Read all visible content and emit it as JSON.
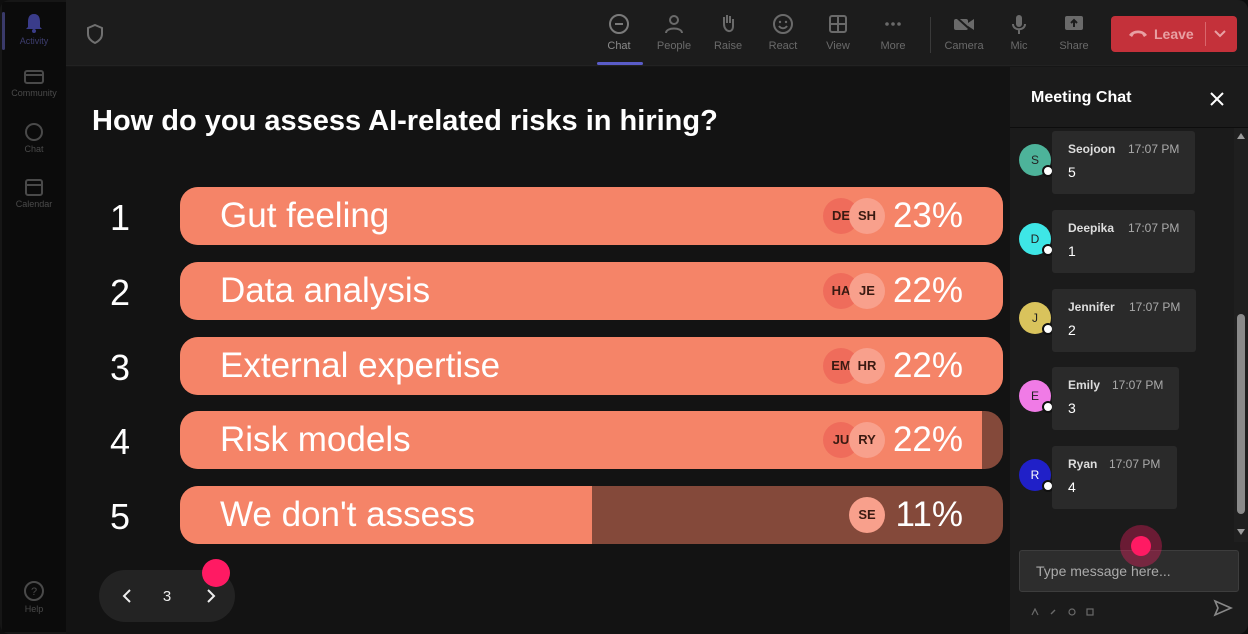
{
  "rail": {
    "items": [
      {
        "label": "Activity",
        "icon": "bell-icon"
      },
      {
        "label": "Community",
        "icon": "community-icon"
      },
      {
        "label": "Chat",
        "icon": "chat-icon"
      },
      {
        "label": "Calendar",
        "icon": "calendar-icon"
      }
    ],
    "help_label": "Help"
  },
  "toolbar": {
    "chat": "Chat",
    "people": "People",
    "raise": "Raise",
    "react": "React",
    "view": "View",
    "more": "More",
    "camera": "Camera",
    "mic": "Mic",
    "share": "Share",
    "leave": "Leave"
  },
  "poll": {
    "question": "How do you assess AI-related risks in hiring?",
    "options": [
      {
        "number": "1",
        "label": "Gut feeling",
        "percent": "23%",
        "fill": 1.0,
        "avatars": [
          "DE",
          "SH"
        ]
      },
      {
        "number": "2",
        "label": "Data analysis",
        "percent": "22%",
        "fill": 1.0,
        "avatars": [
          "HA",
          "JE"
        ]
      },
      {
        "number": "3",
        "label": "External expertise",
        "percent": "22%",
        "fill": 1.0,
        "avatars": [
          "EM",
          "HR"
        ]
      },
      {
        "number": "4",
        "label": "Risk models",
        "percent": "22%",
        "fill": 0.975,
        "avatars": [
          "JU",
          "RY"
        ]
      },
      {
        "number": "5",
        "label": "We don't assess",
        "percent": "11%",
        "fill": 0.5,
        "avatars": [
          "SE"
        ]
      }
    ]
  },
  "pager": {
    "page": "3"
  },
  "chat": {
    "title": "Meeting Chat",
    "messages": [
      {
        "initial": "S",
        "name": "Seojoon",
        "time": "17:07 PM",
        "text": "5",
        "color": "#4db39a"
      },
      {
        "initial": "D",
        "name": "Deepika",
        "time": "17:07 PM",
        "text": "1",
        "color": "#3ee6e6"
      },
      {
        "initial": "J",
        "name": "Jennifer",
        "time": "17:07 PM",
        "text": "2",
        "color": "#d9c35c"
      },
      {
        "initial": "E",
        "name": "Emily",
        "time": "17:07 PM",
        "text": "3",
        "color": "#f07be6"
      },
      {
        "initial": "R",
        "name": "Ryan",
        "time": "17:07 PM",
        "text": "4",
        "color": "#2020c8"
      }
    ],
    "input_placeholder": "Type message here..."
  },
  "colors": {
    "bar_fill": "#f58468",
    "bar_track": "#84493a",
    "leave": "#c4313a",
    "accent": "#5a5cc8",
    "cursor": "#ff1a63"
  }
}
